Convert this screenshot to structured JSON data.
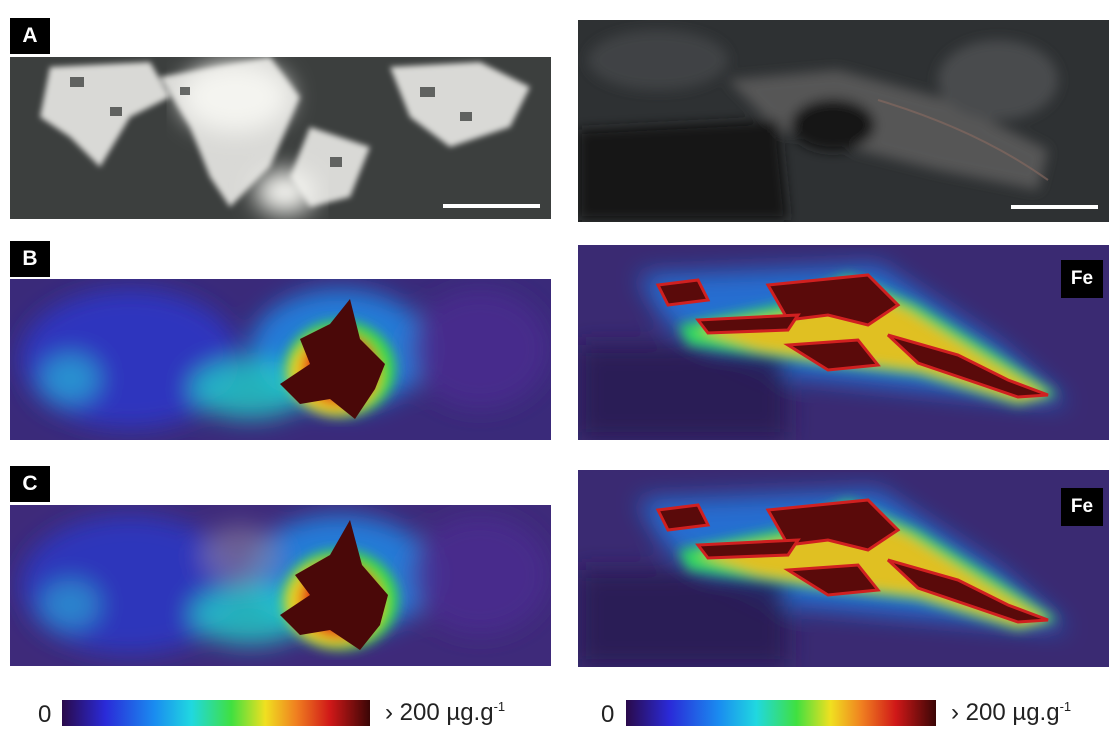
{
  "panels": {
    "row_a": {
      "label": "A"
    },
    "row_b": {
      "label": "B",
      "element": "Fe"
    },
    "row_c": {
      "label": "C",
      "element": "Fe"
    }
  },
  "colorbar": {
    "min_label": "0",
    "max_label_prefix": "› 200 µg.g",
    "max_label_exponent": "-1",
    "colors": [
      "#2a0a4a",
      "#2a2ad8",
      "#1a8cf0",
      "#20d8e0",
      "#40e040",
      "#f0e020",
      "#f08020",
      "#d01818",
      "#3a0606"
    ]
  }
}
